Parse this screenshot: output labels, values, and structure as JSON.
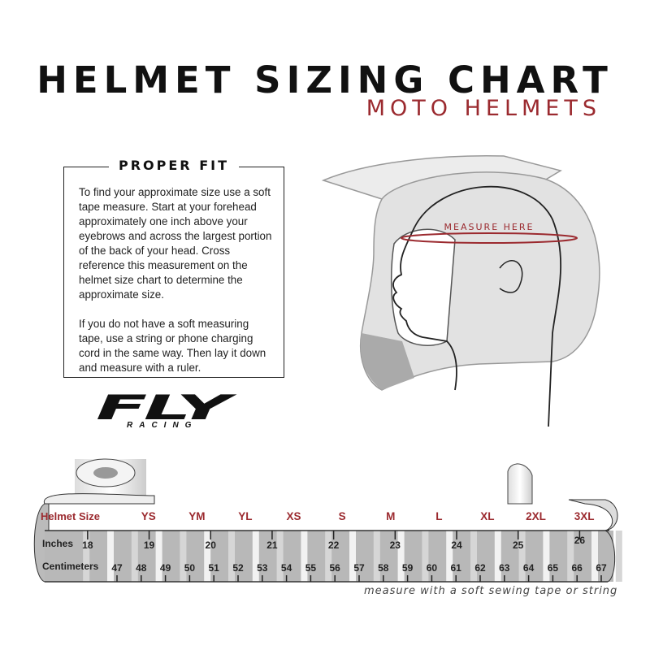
{
  "title": "HELMET SIZING CHART",
  "subtitle": "MOTO HELMETS",
  "proper_fit": {
    "heading": "PROPER FIT",
    "paragraphs": [
      "To find your approximate size use a soft tape measure. Start at your forehead approximately one inch above your eyebrows and across the largest portion of the back of your head. Cross reference this measurement on the helmet size chart to determine the approximate size.",
      "If you do not have a soft measuring tape, use a string or phone charging cord in the same way. Then lay it down and measure with a ruler."
    ]
  },
  "illustration": {
    "measure_label": "MEASURE HERE"
  },
  "logo": {
    "brand": "FLY",
    "sub": "RACING"
  },
  "tape": {
    "row_labels": {
      "sizes": "Helmet Size",
      "inches": "Inches",
      "cm": "Centimeters"
    },
    "sizes": [
      {
        "label": "YS",
        "cm": 48.3
      },
      {
        "label": "YM",
        "cm": 50.3
      },
      {
        "label": "YL",
        "cm": 52.3
      },
      {
        "label": "XS",
        "cm": 54.3
      },
      {
        "label": "S",
        "cm": 56.3
      },
      {
        "label": "M",
        "cm": 58.3
      },
      {
        "label": "L",
        "cm": 60.3
      },
      {
        "label": "XL",
        "cm": 62.3
      },
      {
        "label": "2XL",
        "cm": 64.3
      },
      {
        "label": "3XL",
        "cm": 66.3
      }
    ],
    "inches": [
      "18",
      "19",
      "20",
      "21",
      "22",
      "23",
      "24",
      "25",
      "26"
    ],
    "centimeters": [
      "47",
      "48",
      "49",
      "50",
      "51",
      "52",
      "53",
      "54",
      "55",
      "56",
      "57",
      "58",
      "59",
      "60",
      "61",
      "62",
      "63",
      "64",
      "65",
      "66",
      "67"
    ],
    "caption": "measure with a soft sewing tape or string"
  },
  "colors": {
    "accent": "#9b2a2f",
    "tape_gray": "#b8b8b8"
  }
}
